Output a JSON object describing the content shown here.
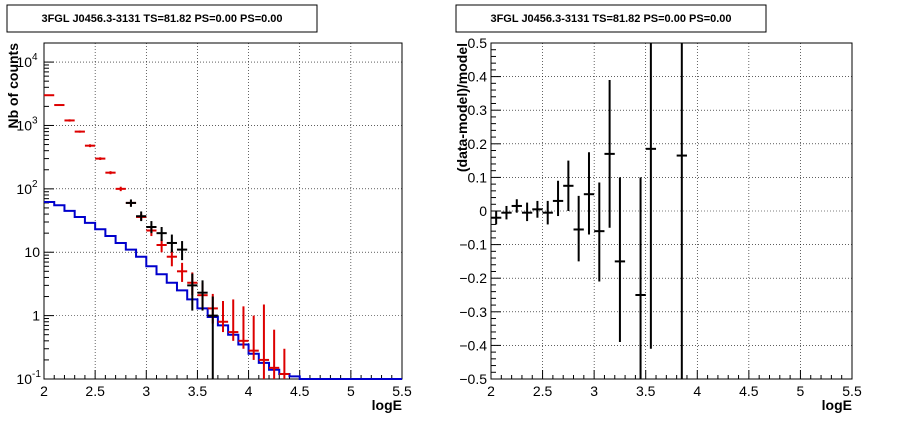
{
  "chart_data": [
    {
      "type": "line",
      "title": "3FGL J0456.3-3131 TS=81.82 PS=0.00 PS=0.00",
      "xlabel": "logE",
      "ylabel": "Nb of counts",
      "xlim": [
        2,
        5.5
      ],
      "ylim": [
        0.1,
        20000
      ],
      "yscale": "log",
      "grid": true,
      "x_ticks": [
        "2",
        "2.5",
        "3",
        "3.5",
        "4",
        "4.5",
        "5",
        "5.5"
      ],
      "y_ticks": [
        {
          "value": 0.1,
          "label": "10",
          "exp": "-1"
        },
        {
          "value": 1,
          "label": "1",
          "exp": ""
        },
        {
          "value": 10,
          "label": "10",
          "exp": ""
        },
        {
          "value": 100,
          "label": "10",
          "exp": "2"
        },
        {
          "value": 1000,
          "label": "10",
          "exp": "3"
        },
        {
          "value": 10000,
          "label": "10",
          "exp": "4"
        }
      ],
      "series": [
        {
          "color": "#0000cc",
          "style": "step",
          "bin_edges": [
            2.0,
            2.1,
            2.2,
            2.3,
            2.4,
            2.5,
            2.6,
            2.7,
            2.8,
            2.9,
            3.0,
            3.1,
            3.2,
            3.3,
            3.4,
            3.5,
            3.6,
            3.7,
            3.8,
            3.9,
            4.0,
            4.1,
            4.2,
            4.3,
            4.4,
            4.5,
            5.5
          ],
          "values": [
            62,
            55,
            45,
            36,
            29,
            23,
            18,
            14,
            11,
            8.5,
            6.0,
            4.5,
            3.3,
            2.5,
            1.8,
            1.3,
            0.95,
            0.7,
            0.5,
            0.35,
            0.25,
            0.18,
            0.14,
            0.12,
            0.11,
            0.1
          ]
        },
        {
          "color": "#dd0000",
          "style": "errorbar",
          "x": [
            2.05,
            2.15,
            2.25,
            2.35,
            2.45,
            2.55,
            2.65,
            2.75,
            2.85,
            2.95,
            3.05,
            3.15,
            3.25,
            3.35,
            3.45,
            3.55,
            3.65,
            3.75,
            3.85,
            3.95,
            4.05,
            4.15,
            4.25,
            4.35
          ],
          "values": [
            3000,
            2100,
            1200,
            800,
            480,
            300,
            180,
            100,
            60,
            36,
            22,
            13,
            8.5,
            5.0,
            3.3,
            2.1,
            1.3,
            0.8,
            0.55,
            0.4,
            0.28,
            0.2,
            0.15,
            0.12
          ],
          "err_low": [
            2940,
            2040,
            1150,
            770,
            455,
            285,
            170,
            92,
            54,
            32,
            18,
            10,
            6.0,
            3.4,
            2.1,
            1.3,
            0.75,
            0.55,
            0.4,
            0.3,
            0.2,
            0.1,
            0.05,
            0.02
          ],
          "err_high": [
            3060,
            2160,
            1250,
            830,
            505,
            315,
            190,
            108,
            66,
            40,
            26,
            16,
            11,
            6.8,
            4.8,
            3.3,
            2.2,
            1.7,
            1.8,
            1.4,
            1.0,
            1.5,
            0.6,
            0.3
          ]
        },
        {
          "color": "#000000",
          "style": "errorbar",
          "x": [
            2.85,
            2.95,
            3.05,
            3.15,
            3.25,
            3.35,
            3.45,
            3.55,
            3.65
          ],
          "values": [
            60,
            37,
            25,
            20,
            14,
            11,
            3.0,
            2.3,
            1.0
          ],
          "err_low": [
            52,
            31,
            20,
            15,
            10,
            7.5,
            1.2,
            1.2,
            0.1
          ],
          "err_high": [
            68,
            44,
            31,
            25,
            19,
            15,
            4.6,
            3.6,
            2.0
          ]
        }
      ]
    },
    {
      "type": "scatter",
      "title": "3FGL J0456.3-3131 TS=81.82 PS=0.00 PS=0.00",
      "xlabel": "logE",
      "ylabel": "(data-model)/model",
      "xlim": [
        2,
        5.5
      ],
      "ylim": [
        -0.5,
        0.5
      ],
      "grid": true,
      "x_ticks": [
        "2",
        "2.5",
        "3",
        "3.5",
        "4",
        "4.5",
        "5",
        "5.5"
      ],
      "y_ticks": [
        "−0.5",
        "−0.4",
        "−0.3",
        "−0.2",
        "−0.1",
        "0",
        "0.1",
        "0.2",
        "0.3",
        "0.4",
        "0.5"
      ],
      "series": [
        {
          "color": "#000000",
          "style": "errorbar",
          "x": [
            2.05,
            2.15,
            2.25,
            2.35,
            2.45,
            2.55,
            2.65,
            2.75,
            2.85,
            2.95,
            3.05,
            3.15,
            3.25,
            3.45,
            3.55,
            3.85
          ],
          "values": [
            -0.02,
            -0.005,
            0.015,
            -0.005,
            0.005,
            -0.005,
            0.03,
            0.075,
            -0.055,
            0.05,
            -0.06,
            0.17,
            -0.15,
            -0.25,
            0.185,
            0.165
          ],
          "err_low": [
            -0.04,
            -0.025,
            -0.005,
            -0.03,
            -0.02,
            -0.04,
            -0.015,
            0.0,
            -0.15,
            -0.07,
            -0.21,
            -0.05,
            -0.39,
            -0.58,
            -0.41,
            -0.6
          ],
          "err_high": [
            0.0,
            0.015,
            0.035,
            0.025,
            0.03,
            0.03,
            0.09,
            0.15,
            0.045,
            0.175,
            0.085,
            0.39,
            0.1,
            0.1,
            0.6,
            0.6
          ]
        }
      ]
    }
  ]
}
